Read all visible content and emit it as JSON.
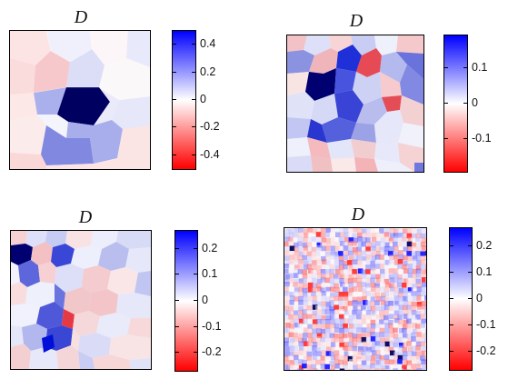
{
  "panels": [
    {
      "title": "D",
      "colorbar": {
        "max": 0.5,
        "min": -0.5,
        "ticks": [
          "0.4",
          "0.2",
          "0",
          "-0.2",
          "-0.4"
        ],
        "values": [
          0.4,
          0.2,
          0,
          -0.2,
          -0.4
        ]
      },
      "colors": {
        "top": "#0000ff",
        "mid": "#ffffff",
        "bottom": "#ff0000",
        "extreme_top": "#000050"
      }
    },
    {
      "title": "D",
      "colorbar": {
        "max": 0.19,
        "min": -0.19,
        "ticks": [
          "0.1",
          "0",
          "-0.1"
        ],
        "values": [
          0.1,
          0,
          -0.1
        ]
      },
      "colors": {
        "top": "#0000ff",
        "mid": "#ffffff",
        "bottom": "#ff0000",
        "extreme_top": "#000050"
      }
    },
    {
      "title": "D",
      "colorbar": {
        "max": 0.27,
        "min": -0.27,
        "ticks": [
          "0.2",
          "0.1",
          "0",
          "-0.1",
          "-0.2"
        ],
        "values": [
          0.2,
          0.1,
          0,
          -0.1,
          -0.2
        ]
      },
      "colors": {
        "top": "#0000ff",
        "mid": "#ffffff",
        "bottom": "#ff0000",
        "extreme_top": "#000050"
      }
    },
    {
      "title": "D",
      "colorbar": {
        "max": 0.27,
        "min": -0.27,
        "ticks": [
          "0.2",
          "0.1",
          "0",
          "-0.1",
          "-0.2"
        ],
        "values": [
          0.2,
          0.1,
          0,
          -0.1,
          -0.2
        ]
      },
      "colors": {
        "top": "#0000ff",
        "mid": "#ffffff",
        "bottom": "#ff0000",
        "extreme_top": "#000050"
      }
    }
  ]
}
